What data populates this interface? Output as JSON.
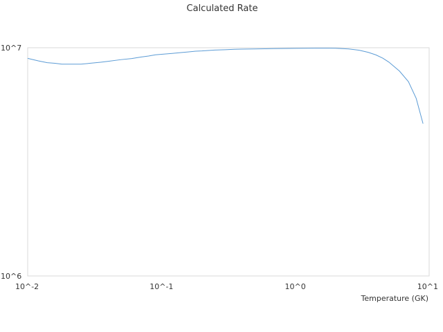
{
  "chart_data": {
    "type": "line",
    "title": "Calculated Rate",
    "xlabel": "Temperature (GK)",
    "ylabel": "",
    "x_scale": "log",
    "y_scale": "log",
    "xlim": [
      0.01,
      10
    ],
    "ylim": [
      1000000,
      10000000
    ],
    "x_ticks": [
      0.01,
      0.1,
      1,
      10
    ],
    "x_tick_labels": [
      "10^-2",
      "10^-1",
      "10^0",
      "10^1"
    ],
    "y_ticks": [
      1000000,
      10000000
    ],
    "y_tick_labels": [
      "10^6",
      "10^7"
    ],
    "grid": false,
    "legend": "none",
    "series": [
      {
        "color": "#5b9bd5",
        "x": [
          0.01,
          0.012,
          0.014,
          0.016,
          0.018,
          0.02,
          0.025,
          0.03,
          0.035,
          0.04,
          0.05,
          0.06,
          0.07,
          0.08,
          0.09,
          0.1,
          0.12,
          0.14,
          0.16,
          0.18,
          0.2,
          0.25,
          0.3,
          0.35,
          0.4,
          0.5,
          0.6,
          0.7,
          0.8,
          0.9,
          1.0,
          1.2,
          1.4,
          1.6,
          1.8,
          2.0,
          2.5,
          3.0,
          3.5,
          4.0,
          4.5,
          5.0,
          6.0,
          7.0,
          8.0,
          9.0
        ],
        "y": [
          8980000,
          8760000,
          8600000,
          8550000,
          8470000,
          8470000,
          8470000,
          8560000,
          8640000,
          8720000,
          8870000,
          8970000,
          9100000,
          9200000,
          9310000,
          9360000,
          9440000,
          9520000,
          9590000,
          9660000,
          9680000,
          9770000,
          9800000,
          9840000,
          9860000,
          9880000,
          9900000,
          9910000,
          9920000,
          9930000,
          9940000,
          9950000,
          9955000,
          9955000,
          9955000,
          9950000,
          9880000,
          9750000,
          9550000,
          9300000,
          9000000,
          8650000,
          7900000,
          7100000,
          6000000,
          4650000
        ]
      }
    ]
  }
}
